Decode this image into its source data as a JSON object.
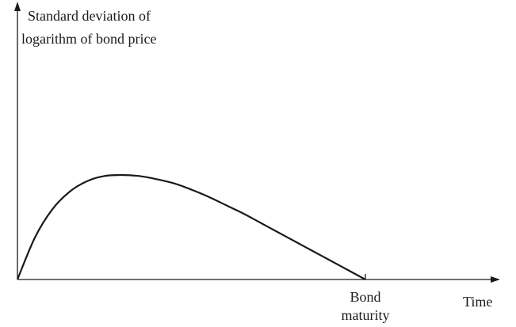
{
  "chart_data": {
    "type": "line",
    "title": "",
    "ylabel": [
      "Standard deviation of",
      "logarithm of bond price"
    ],
    "xlabel": "Time",
    "x_annotation": [
      "Bond",
      "maturity"
    ],
    "x_range": [
      0,
      1
    ],
    "y_range": [
      0,
      1
    ],
    "grid": false,
    "legend": "none",
    "axis_color": "#1a1a1a",
    "line_color": "#1a1a1a",
    "series": [
      {
        "x": [
          0,
          0.05,
          0.1,
          0.15,
          0.2,
          0.25,
          0.3,
          0.35,
          0.4,
          0.45,
          0.5,
          0.55,
          0.6,
          0.65,
          0.7,
          0.75,
          0.8,
          0.85,
          0.9,
          0.95,
          1
        ],
        "values": [
          0,
          0.4,
          0.67,
          0.84,
          0.94,
          0.99,
          1.0,
          0.99,
          0.96,
          0.92,
          0.86,
          0.79,
          0.71,
          0.63,
          0.54,
          0.45,
          0.36,
          0.27,
          0.18,
          0.09,
          0
        ]
      }
    ]
  }
}
